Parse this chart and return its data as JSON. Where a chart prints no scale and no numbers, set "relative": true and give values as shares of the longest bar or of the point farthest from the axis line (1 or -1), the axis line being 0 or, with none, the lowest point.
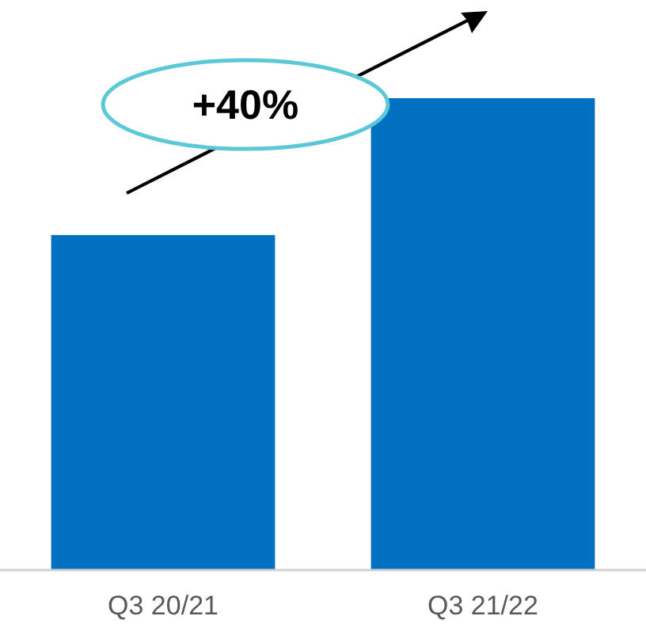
{
  "chart_data": {
    "type": "bar",
    "relative": true,
    "categories": [
      "Q3 20/21",
      "Q3 21/22"
    ],
    "values": [
      0.71,
      1
    ],
    "color": "#0070c0",
    "annotations": [
      "+40%"
    ]
  }
}
